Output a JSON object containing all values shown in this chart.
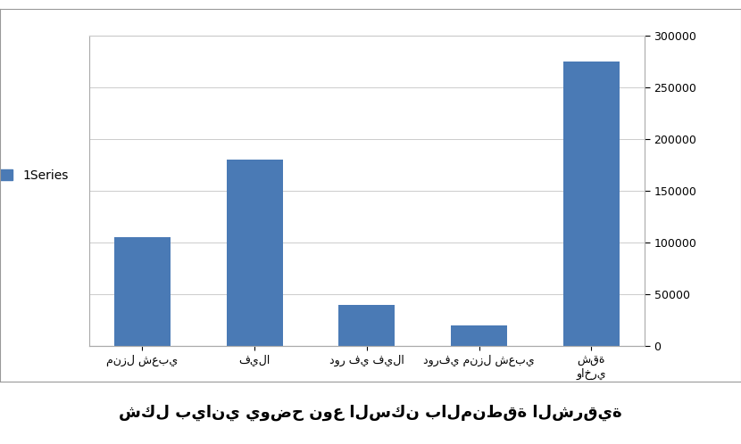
{
  "categories": [
    "منزل شعبي",
    "فيلا",
    "دور في فيلا",
    "دورفي منزل شعبي",
    "شقة\nواخري"
  ],
  "values": [
    105000,
    180000,
    40000,
    20000,
    275000
  ],
  "bar_color": "#4a7ab5",
  "legend_label": "1Series",
  "title": "شكل بياني يوضح نوع السكن بالمنطقة الشرقية",
  "ylim": [
    0,
    300000
  ],
  "yticks": [
    0,
    50000,
    100000,
    150000,
    200000,
    250000,
    300000
  ],
  "chart_bg": "#ffffff",
  "fig_bg": "#ffffff",
  "bar_width": 0.5,
  "title_fontsize": 13,
  "legend_fontsize": 10,
  "tick_fontsize": 9,
  "grid_color": "#cccccc"
}
